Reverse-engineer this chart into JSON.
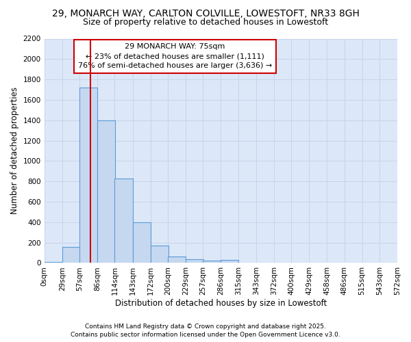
{
  "title": "29, MONARCH WAY, CARLTON COLVILLE, LOWESTOFT, NR33 8GH",
  "subtitle": "Size of property relative to detached houses in Lowestoft",
  "xlabel": "Distribution of detached houses by size in Lowestoft",
  "ylabel": "Number of detached properties",
  "bar_color": "#c5d8f0",
  "bar_edge_color": "#5b9bd5",
  "bins": [
    0,
    29,
    57,
    86,
    114,
    143,
    172,
    200,
    229,
    257,
    286,
    315,
    343,
    372,
    400,
    429,
    458,
    486,
    515,
    543,
    572
  ],
  "bin_labels": [
    "0sqm",
    "29sqm",
    "57sqm",
    "86sqm",
    "114sqm",
    "143sqm",
    "172sqm",
    "200sqm",
    "229sqm",
    "257sqm",
    "286sqm",
    "315sqm",
    "343sqm",
    "372sqm",
    "400sqm",
    "429sqm",
    "458sqm",
    "486sqm",
    "515sqm",
    "543sqm",
    "572sqm"
  ],
  "counts": [
    10,
    160,
    1720,
    1400,
    830,
    400,
    170,
    65,
    35,
    25,
    30,
    5,
    5,
    5,
    0,
    0,
    0,
    0,
    0,
    0
  ],
  "vline_x": 75,
  "vline_color": "#cc0000",
  "annotation_text": "29 MONARCH WAY: 75sqm\n← 23% of detached houses are smaller (1,111)\n76% of semi-detached houses are larger (3,636) →",
  "annotation_box_color": "#cc0000",
  "annotation_bg_color": "#ffffff",
  "ylim": [
    0,
    2200
  ],
  "yticks": [
    0,
    200,
    400,
    600,
    800,
    1000,
    1200,
    1400,
    1600,
    1800,
    2000,
    2200
  ],
  "grid_color": "#c8d4e8",
  "bg_color": "#dce8f8",
  "fig_bg_color": "#ffffff",
  "footer_line1": "Contains HM Land Registry data © Crown copyright and database right 2025.",
  "footer_line2": "Contains public sector information licensed under the Open Government Licence v3.0.",
  "title_fontsize": 10,
  "subtitle_fontsize": 9,
  "tick_fontsize": 7.5,
  "ylabel_fontsize": 8.5,
  "xlabel_fontsize": 8.5,
  "footer_fontsize": 6.5,
  "annotation_fontsize": 8
}
